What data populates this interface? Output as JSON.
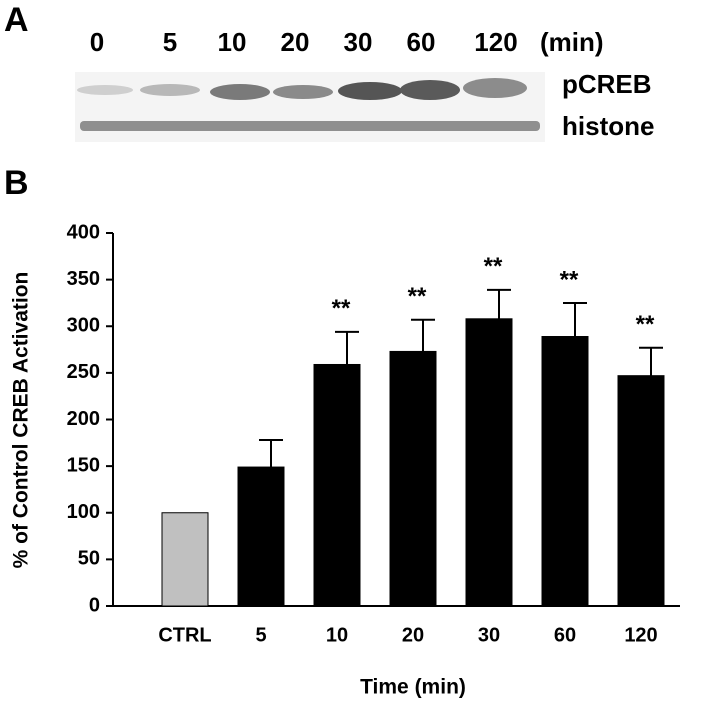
{
  "panel_a": {
    "label": "A",
    "lanes": [
      "0",
      "5",
      "10",
      "20",
      "30",
      "60",
      "120"
    ],
    "unit": "(min)",
    "bands": [
      "pCREB",
      "histone"
    ]
  },
  "chart_data": {
    "type": "bar",
    "panel_label": "B",
    "x_label": "Time (min)",
    "y_label": "% of Control CREB Activation",
    "categories": [
      "CTRL",
      "5",
      "10",
      "20",
      "30",
      "60",
      "120"
    ],
    "values": [
      100,
      149,
      259,
      273,
      308,
      289,
      247
    ],
    "errors": [
      null,
      29,
      35,
      34,
      31,
      36,
      30
    ],
    "colors": [
      "#c0c0c0",
      "#000000",
      "#000000",
      "#000000",
      "#000000",
      "#000000",
      "#000000"
    ],
    "annotations": [
      null,
      null,
      "**",
      "**",
      "**",
      "**",
      "**"
    ],
    "ylim": [
      0,
      400
    ],
    "yticks": [
      0,
      50,
      100,
      150,
      200,
      250,
      300,
      350,
      400
    ]
  }
}
